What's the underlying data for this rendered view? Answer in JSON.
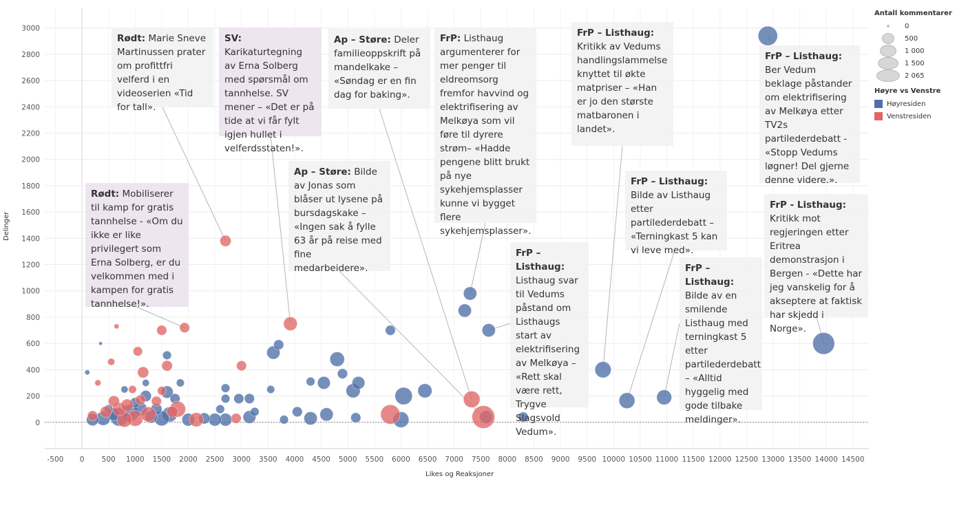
{
  "chart_data": {
    "type": "scatter",
    "xlabel": "Likes og Reaksjoner",
    "ylabel": "Delinger",
    "xlim": [
      -700,
      14800
    ],
    "ylim": [
      -200,
      3150
    ],
    "xticks": [
      -500,
      0,
      500,
      1000,
      1500,
      2000,
      2500,
      3000,
      3500,
      4000,
      4500,
      5000,
      5500,
      6000,
      6500,
      7000,
      7500,
      8000,
      8500,
      9000,
      9500,
      10000,
      10500,
      11000,
      11500,
      12000,
      12500,
      13000,
      13500,
      14000,
      14500
    ],
    "yticks": [
      0,
      200,
      400,
      600,
      800,
      1000,
      1200,
      1400,
      1600,
      1800,
      2000,
      2200,
      2400,
      2600,
      2800,
      3000
    ],
    "grid": true,
    "colors": {
      "hoyre": "#4e6fa8",
      "venstre": "#e06666",
      "zero_line": "#888888"
    },
    "series": [
      {
        "name": "Høyresiden",
        "color_key": "hoyre",
        "points": [
          [
            12900,
            2940,
            1500
          ],
          [
            13950,
            600,
            1900
          ],
          [
            7300,
            980,
            700
          ],
          [
            7200,
            850,
            700
          ],
          [
            7650,
            700,
            700
          ],
          [
            9800,
            400,
            1050
          ],
          [
            10250,
            165,
            1000
          ],
          [
            10950,
            190,
            900
          ],
          [
            7600,
            40,
            650
          ],
          [
            8300,
            40,
            400
          ],
          [
            6050,
            200,
            1200
          ],
          [
            6000,
            20,
            1000
          ],
          [
            6450,
            240,
            800
          ],
          [
            5800,
            700,
            400
          ],
          [
            5100,
            240,
            800
          ],
          [
            5200,
            300,
            650
          ],
          [
            5150,
            35,
            400
          ],
          [
            4800,
            480,
            850
          ],
          [
            4900,
            370,
            400
          ],
          [
            4550,
            300,
            650
          ],
          [
            4300,
            310,
            300
          ],
          [
            4600,
            60,
            700
          ],
          [
            4300,
            30,
            700
          ],
          [
            4050,
            80,
            400
          ],
          [
            3600,
            530,
            700
          ],
          [
            3700,
            590,
            400
          ],
          [
            3550,
            250,
            250
          ],
          [
            3150,
            180,
            400
          ],
          [
            3150,
            40,
            650
          ],
          [
            2950,
            180,
            400
          ],
          [
            2700,
            260,
            300
          ],
          [
            2700,
            180,
            300
          ],
          [
            2700,
            20,
            650
          ],
          [
            2500,
            20,
            650
          ],
          [
            2300,
            30,
            500
          ],
          [
            2000,
            20,
            650
          ],
          [
            1850,
            300,
            250
          ],
          [
            1600,
            510,
            300
          ],
          [
            1600,
            230,
            600
          ],
          [
            1650,
            60,
            900
          ],
          [
            1500,
            30,
            900
          ],
          [
            1300,
            40,
            600
          ],
          [
            1200,
            200,
            500
          ],
          [
            1100,
            100,
            700
          ],
          [
            900,
            70,
            1200
          ],
          [
            700,
            40,
            1300
          ],
          [
            600,
            60,
            600
          ],
          [
            400,
            30,
            800
          ],
          [
            200,
            20,
            600
          ],
          [
            100,
            380,
            100
          ],
          [
            350,
            600,
            50
          ],
          [
            1000,
            150,
            400
          ],
          [
            1400,
            100,
            500
          ],
          [
            1750,
            180,
            400
          ],
          [
            2600,
            100,
            300
          ],
          [
            3250,
            80,
            300
          ],
          [
            3800,
            20,
            300
          ],
          [
            500,
            100,
            300
          ],
          [
            800,
            250,
            200
          ],
          [
            1200,
            300,
            200
          ]
        ]
      },
      {
        "name": "Venstresiden",
        "color_key": "venstre",
        "points": [
          [
            7550,
            40,
            2065
          ],
          [
            7330,
            175,
            1100
          ],
          [
            5800,
            60,
            1500
          ],
          [
            3920,
            750,
            750
          ],
          [
            2700,
            1380,
            500
          ],
          [
            1930,
            720,
            400
          ],
          [
            1500,
            700,
            400
          ],
          [
            3000,
            430,
            400
          ],
          [
            2150,
            20,
            800
          ],
          [
            1600,
            430,
            450
          ],
          [
            1150,
            380,
            500
          ],
          [
            1050,
            540,
            350
          ],
          [
            650,
            730,
            100
          ],
          [
            600,
            160,
            500
          ],
          [
            550,
            460,
            200
          ],
          [
            1500,
            240,
            300
          ],
          [
            1800,
            100,
            1000
          ],
          [
            1250,
            60,
            900
          ],
          [
            1000,
            30,
            1000
          ],
          [
            800,
            20,
            900
          ],
          [
            2900,
            30,
            400
          ],
          [
            700,
            100,
            700
          ],
          [
            450,
            80,
            500
          ],
          [
            200,
            50,
            400
          ],
          [
            950,
            250,
            250
          ],
          [
            1400,
            160,
            400
          ],
          [
            300,
            300,
            150
          ],
          [
            1100,
            170,
            400
          ],
          [
            850,
            130,
            600
          ],
          [
            1700,
            80,
            500
          ]
        ]
      }
    ],
    "annotations": [
      {
        "head": "Rødt:",
        "text": "Marie Sneve Martinussen prater om profittfri velferd i en videoserien «Tid for tall».",
        "x": 2700,
        "y": 1380
      },
      {
        "head": "SV:",
        "text": "Karikaturtegning av Erna Solberg med spørsmål om tannhelse. SV mener – «Det er på tide at vi får fylt igjen hullet i velferdsstaten!».",
        "x": 3920,
        "y": 750
      },
      {
        "head": "Ap – Støre:",
        "text": "Deler familieoppskrift på mandelkake – «Søndag er en fin dag for baking».",
        "x": 7330,
        "y": 175
      },
      {
        "head": "FrP:",
        "text": "Listhaug argumenterer for mer penger til eldreomsorg fremfor havvind og elektrifisering av Melkøya som vil føre til dyrere strøm– «Hadde pengene blitt brukt på nye sykehjemsplasser kunne vi bygget flere sykehjemsplasser».",
        "x": 7300,
        "y": 980
      },
      {
        "head": "FrP – Listhaug:",
        "text": "Kritikk av Vedums handlingslammelse knyttet til økte matpriser – «Han er jo den største matbaronen i landet».",
        "x": 9800,
        "y": 400
      },
      {
        "head": "FrP – Listhaug:",
        "text": "Ber Vedum beklage påstander om elektrifisering av Melkøya etter TV2s partilederdebatt - «Stopp Vedums løgner! Del gjerne denne videre.».",
        "x": 12900,
        "y": 2940
      },
      {
        "head": "Rødt:",
        "text": "Mobiliserer til kamp for gratis tannhelse - «Om du ikke er like privilegert som Erna Solberg, er du velkommen med i kampen for gratis tannhelse!».",
        "x": 1930,
        "y": 720
      },
      {
        "head": "Ap – Støre:",
        "text": "Bilde av Jonas som blåser ut lysene på bursdagskake – «Ingen sak å fylle 63 år på reise med fine medarbeidere».",
        "x": 7550,
        "y": 40
      },
      {
        "head": "FrP – Listhaug:",
        "text": "Bilde av Listhaug etter partilederdebatt – «Terningkast 5 kan vi leve med».",
        "x": 10250,
        "y": 165
      },
      {
        "head": "FrP – Listhaug:",
        "text": "Listhaug svar til Vedums påstand om Listhaugs start av elektrifisering av Melkøya – «Rett skal være rett, Trygve Slagsvold Vedum».",
        "x": 7650,
        "y": 700
      },
      {
        "head": "FrP – Listhaug:",
        "text": "Bilde av en smilende Listhaug med terningkast 5 etter partilederdebatt – «Alltid hyggelig med gode tilbake meldinger».",
        "x": 10950,
        "y": 190
      },
      {
        "head": "FrP - Listhaug:",
        "text": "Kritikk mot regjeringen etter Eritrea demonstrasjon i Bergen - «Dette har jeg vanskelig for å akseptere at faktisk har skjedd i Norge».",
        "x": 13950,
        "y": 600
      }
    ],
    "legend": {
      "size_title": "Antall kommentarer",
      "sizes": [
        {
          "label": "0",
          "value": 0
        },
        {
          "label": "500",
          "value": 500
        },
        {
          "label": "1 000",
          "value": 1000
        },
        {
          "label": "1 500",
          "value": 1500
        },
        {
          "label": "2 065",
          "value": 2065
        }
      ],
      "color_title": "Høyre vs Venstre",
      "colors": [
        {
          "label": "Høyresiden",
          "color": "#4e6fa8"
        },
        {
          "label": "Venstresiden",
          "color": "#e06666"
        }
      ]
    }
  }
}
